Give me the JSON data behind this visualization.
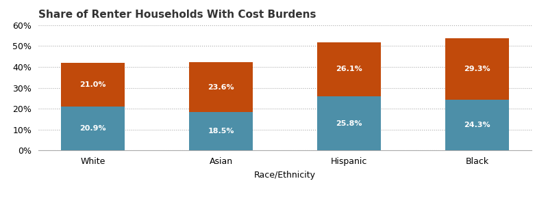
{
  "title": "Share of Renter Households With Cost Burdens",
  "categories": [
    "White",
    "Asian",
    "Hispanic",
    "Black"
  ],
  "moderate": [
    20.9,
    18.5,
    25.8,
    24.3
  ],
  "severe": [
    21.0,
    23.6,
    26.1,
    29.3
  ],
  "moderate_color": "#4d8fa8",
  "severe_color": "#c14a0b",
  "xlabel": "Race/Ethnicity",
  "ylim": [
    0,
    60
  ],
  "yticks": [
    0,
    10,
    20,
    30,
    40,
    50,
    60
  ],
  "ytick_labels": [
    "0%",
    "10%",
    "20%",
    "30%",
    "40%",
    "50%",
    "60%"
  ],
  "bar_width": 0.5,
  "label_fontsize": 8.0,
  "title_fontsize": 11,
  "axis_fontsize": 9,
  "legend_fontsize": 8.5,
  "background_color": "#ffffff",
  "text_color_bar": "#ffffff"
}
